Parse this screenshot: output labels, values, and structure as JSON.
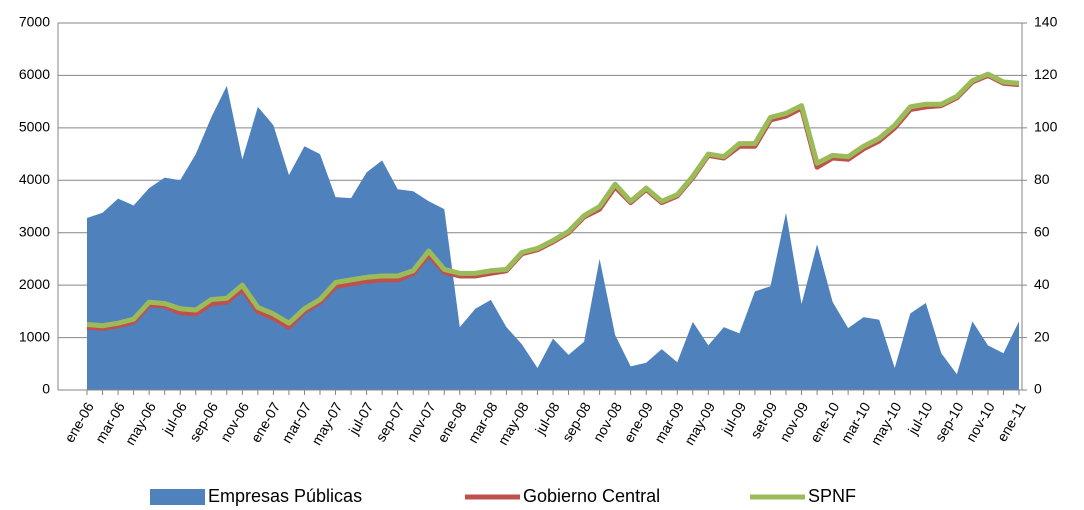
{
  "chart_data": {
    "type": "area-line",
    "categories": [
      "ene-06",
      null,
      "mar-06",
      null,
      "may-06",
      null,
      "jul-06",
      null,
      "sep-06",
      null,
      "nov-06",
      null,
      "ene-07",
      null,
      "mar-07",
      null,
      "may-07",
      null,
      "jul-07",
      null,
      "sep-07",
      null,
      "nov-07",
      null,
      "ene-08",
      null,
      "mar-08",
      null,
      "may-08",
      null,
      "jul-08",
      null,
      "sep-08",
      null,
      "nov-08",
      null,
      "ene-09",
      null,
      "mar-09",
      null,
      "may-09",
      null,
      "jul-09",
      null,
      "set-09",
      null,
      "nov-09",
      null,
      "ene-10",
      null,
      "mar-10",
      null,
      "may-10",
      null,
      "jul-10",
      null,
      "sep-10",
      null,
      "nov-10",
      null,
      "ene-11"
    ],
    "series": [
      {
        "name": "Empresas Públicas",
        "color": "#4f81bd",
        "kind": "area",
        "axis": "y",
        "values": [
          3280,
          3380,
          3650,
          3520,
          3850,
          4050,
          4000,
          4500,
          5200,
          5800,
          4400,
          5400,
          5050,
          4100,
          4650,
          4500,
          3680,
          3660,
          4150,
          4380,
          3830,
          3790,
          3600,
          3450,
          1200,
          1550,
          1720,
          1200,
          870,
          420,
          980,
          670,
          920,
          2500,
          1050,
          450,
          520,
          780,
          530,
          1300,
          850,
          1200,
          1080,
          1880,
          1980,
          3380,
          1640,
          2780,
          1680,
          1180,
          1390,
          1340,
          420,
          1460,
          1660,
          700,
          300,
          1310,
          850,
          700,
          1310
        ]
      },
      {
        "name": "Gobierno Central",
        "color": "#c0504d",
        "kind": "line",
        "axis": "y2",
        "values": [
          24,
          23.5,
          24.5,
          26,
          32.5,
          32,
          29.5,
          29,
          33,
          33.5,
          38.5,
          30,
          27.5,
          24,
          30,
          33.5,
          39.5,
          40.5,
          41.5,
          42,
          42,
          44.5,
          51.5,
          45,
          43.5,
          43.5,
          44.5,
          45.5,
          52,
          53.5,
          56.5,
          60,
          66,
          69,
          77.5,
          71.5,
          76.5,
          71.5,
          74,
          81,
          89.5,
          88.5,
          93,
          93,
          103,
          104.5,
          107.5,
          85,
          88.5,
          88,
          92,
          95,
          100,
          107,
          108,
          108.5,
          111.5,
          117.5,
          120,
          117,
          116.5
        ]
      },
      {
        "name": "SPNF",
        "color": "#9bbb59",
        "kind": "line",
        "axis": "y2",
        "values": [
          25,
          24.5,
          25.5,
          27,
          33.5,
          33,
          31,
          30.5,
          34.5,
          35,
          40,
          31.5,
          29,
          25.5,
          31,
          34.5,
          41,
          42,
          43,
          43.5,
          43.5,
          45.5,
          53,
          46,
          44.5,
          44.5,
          45.5,
          46,
          52.5,
          54,
          57,
          60.5,
          66.5,
          70,
          78.5,
          72,
          77,
          72,
          74.5,
          81.5,
          90,
          89,
          94,
          94,
          104,
          105.5,
          108.5,
          86.5,
          89.5,
          89,
          93,
          96,
          101,
          108,
          109,
          109,
          112,
          118,
          120.5,
          117.5,
          117
        ]
      }
    ],
    "ylim": [
      0,
      7000
    ],
    "yticks": [
      0,
      1000,
      2000,
      3000,
      4000,
      5000,
      6000,
      7000
    ],
    "y2lim": [
      0,
      140
    ],
    "y2ticks": [
      0,
      20,
      40,
      60,
      80,
      100,
      120,
      140
    ],
    "grid": true,
    "legend": "bottom"
  }
}
